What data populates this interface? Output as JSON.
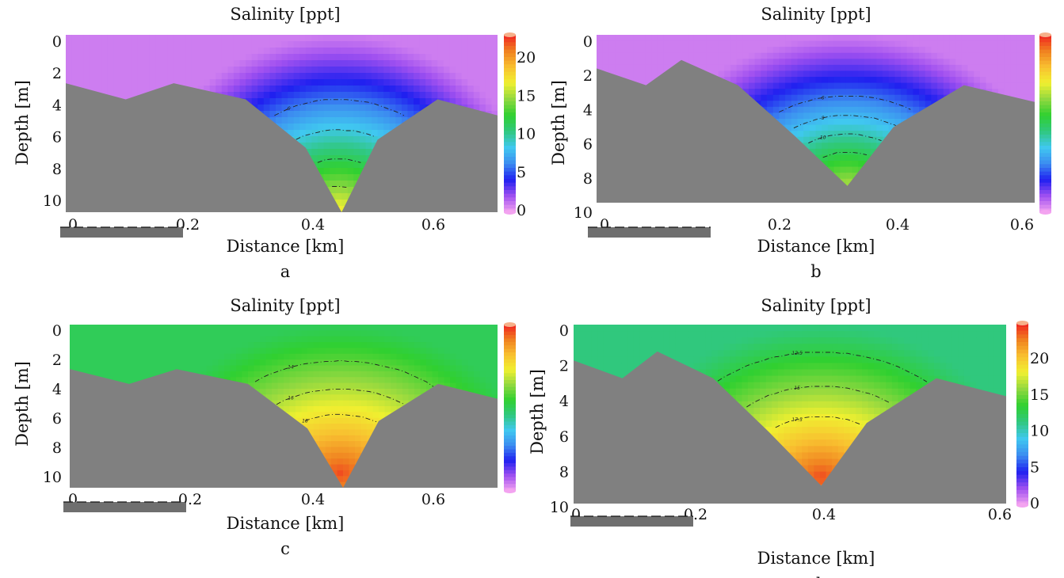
{
  "chart_data": [
    {
      "type": "heatmap",
      "panel_label": "a",
      "title": "Salinity [ppt]",
      "xlabel": "Distance [km]",
      "ylabel": "Depth [m]",
      "xticks": [
        "0",
        "0.2",
        "0.4",
        "0.6"
      ],
      "yticks": [
        "0",
        "2",
        "4",
        "6",
        "8",
        "10"
      ],
      "xlim": [
        0,
        0.72
      ],
      "ylim": [
        0,
        11
      ],
      "colorbar": {
        "ticks": [
          "0",
          "5",
          "10",
          "15",
          "20"
        ],
        "range": [
          0,
          24
        ]
      },
      "bottom_profile": {
        "x": [
          0,
          0.1,
          0.18,
          0.3,
          0.4,
          0.46,
          0.52,
          0.62,
          0.72
        ],
        "depth": [
          3,
          4,
          3,
          4,
          7,
          11,
          6.5,
          4,
          5
        ]
      },
      "field": {
        "surface": 1,
        "deep_x": 0.455,
        "deep_value": 18,
        "deep_depth": 11
      },
      "contours": [
        {
          "label": "6",
          "value": 6
        },
        {
          "label": "",
          "value": 9
        },
        {
          "label": "",
          "value": 12
        },
        {
          "label": "",
          "value": 15
        }
      ]
    },
    {
      "type": "heatmap",
      "panel_label": "b",
      "title": "Salinity [ppt]",
      "xlabel": "Distance [km]",
      "ylabel": "Depth [m]",
      "xticks": [
        "0",
        "0.2",
        "0.4",
        "0.6"
      ],
      "yticks": [
        "0",
        "2",
        "4",
        "6",
        "8",
        "10"
      ],
      "xlim": [
        0,
        0.62
      ],
      "ylim": [
        0,
        10
      ],
      "colorbar": {
        "ticks": [],
        "range": [
          0,
          24
        ]
      },
      "bottom_profile": {
        "x": [
          0,
          0.07,
          0.12,
          0.2,
          0.28,
          0.355,
          0.42,
          0.52,
          0.62
        ],
        "depth": [
          2,
          3,
          1.5,
          3,
          6,
          9,
          5.5,
          3,
          4
        ]
      },
      "field": {
        "surface": 1,
        "deep_x": 0.355,
        "deep_value": 16,
        "deep_depth": 9
      },
      "contours": [
        {
          "label": "6",
          "value": 6
        },
        {
          "label": "8",
          "value": 8
        },
        {
          "label": "10",
          "value": 10
        },
        {
          "label": "",
          "value": 12
        }
      ]
    },
    {
      "type": "heatmap",
      "panel_label": "c",
      "title": "Salinity [ppt]",
      "xlabel": "Distance [km]",
      "ylabel": "Depth [m]",
      "xticks": [
        "0",
        "0.2",
        "0.4",
        "0.6"
      ],
      "yticks": [
        "0",
        "2",
        "4",
        "6",
        "8",
        "10"
      ],
      "xlim": [
        0,
        0.72
      ],
      "ylim": [
        0,
        11
      ],
      "colorbar": {
        "ticks": [],
        "range": [
          0,
          24
        ]
      },
      "bottom_profile": {
        "x": [
          0,
          0.1,
          0.18,
          0.3,
          0.4,
          0.46,
          0.52,
          0.62,
          0.72
        ],
        "depth": [
          3,
          4,
          3,
          4,
          7,
          11,
          6.5,
          4,
          5
        ]
      },
      "field": {
        "surface": 12,
        "deep_x": 0.455,
        "deep_value": 23,
        "deep_depth": 10
      },
      "contours": [
        {
          "label": "14",
          "value": 14
        },
        {
          "label": "16",
          "value": 16
        },
        {
          "label": "18",
          "value": 18
        }
      ]
    },
    {
      "type": "heatmap",
      "panel_label": "d",
      "title": "Salinity [ppt]",
      "xlabel": "Distance [km]",
      "ylabel": "Depth [m]",
      "xticks": [
        "0",
        "0.2",
        "0.4",
        "0.6"
      ],
      "yticks": [
        "0",
        "2",
        "4",
        "6",
        "8",
        "10"
      ],
      "xlim": [
        0,
        0.62
      ],
      "ylim": [
        0,
        10
      ],
      "colorbar": {
        "ticks": [
          "0",
          "5",
          "10",
          "15",
          "20"
        ],
        "range": [
          0,
          24
        ]
      },
      "bottom_profile": {
        "x": [
          0,
          0.07,
          0.12,
          0.2,
          0.28,
          0.355,
          0.42,
          0.52,
          0.62
        ],
        "depth": [
          2,
          3,
          1.5,
          3,
          6,
          9,
          5.5,
          3,
          4
        ]
      },
      "field": {
        "surface": 11,
        "deep_x": 0.355,
        "deep_value": 23,
        "deep_depth": 8.5
      },
      "contours": [
        {
          "label": "12.5",
          "value": 12.5
        },
        {
          "label": "15",
          "value": 15
        },
        {
          "label": "17.5",
          "value": 17.5
        }
      ]
    }
  ],
  "colors": {
    "bathymetry": "#808080",
    "colormap": [
      "#f3a3f0",
      "#a050f0",
      "#2020f0",
      "#3c8cf0",
      "#40c8f0",
      "#30c880",
      "#30d030",
      "#90d840",
      "#f0f030",
      "#f8c030",
      "#f08020",
      "#f02020"
    ]
  }
}
